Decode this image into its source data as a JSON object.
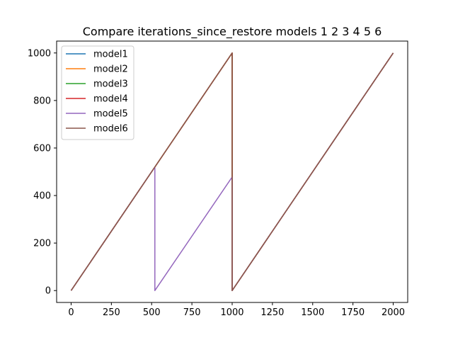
{
  "chart_data": {
    "type": "line",
    "title": "Compare iterations_since_restore models 1 2 3 4 5 6",
    "xlabel": "",
    "ylabel": "",
    "xlim": [
      -90,
      2090
    ],
    "ylim": [
      -50,
      1050
    ],
    "xticks": [
      0,
      250,
      500,
      750,
      1000,
      1250,
      1500,
      1750,
      2000
    ],
    "yticks": [
      0,
      200,
      400,
      600,
      800,
      1000
    ],
    "grid": false,
    "legend_position": "upper-left",
    "series": [
      {
        "name": "model1",
        "color": "#1f77b4",
        "x": [
          0,
          1000,
          1000,
          2000
        ],
        "y": [
          0,
          1000,
          0,
          1000
        ]
      },
      {
        "name": "model2",
        "color": "#ff7f0e",
        "x": [
          0,
          1000,
          1000,
          2000
        ],
        "y": [
          0,
          1000,
          0,
          1000
        ]
      },
      {
        "name": "model3",
        "color": "#2ca02c",
        "x": [
          0,
          1000,
          1000,
          2000
        ],
        "y": [
          0,
          1000,
          0,
          1000
        ]
      },
      {
        "name": "model4",
        "color": "#d62728",
        "x": [
          0,
          1000,
          1000,
          2000
        ],
        "y": [
          0,
          1000,
          0,
          1000
        ]
      },
      {
        "name": "model5",
        "color": "#9467bd",
        "x": [
          0,
          520,
          520,
          1000,
          1000,
          2000
        ],
        "y": [
          0,
          520,
          0,
          478,
          0,
          1000
        ]
      },
      {
        "name": "model6",
        "color": "#8c564b",
        "x": [
          0,
          1000,
          1000,
          2000
        ],
        "y": [
          0,
          1000,
          0,
          1000
        ]
      }
    ]
  }
}
